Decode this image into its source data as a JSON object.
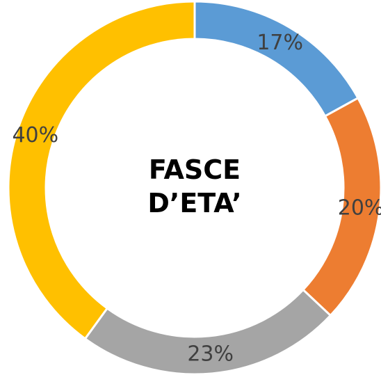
{
  "chart_data": {
    "type": "donut",
    "title": "FASCE D’ETA’",
    "values": [
      17,
      20,
      23,
      40
    ],
    "value_labels": [
      "17%",
      "20%",
      "23%",
      "40%"
    ],
    "colors": [
      "#5b9bd5",
      "#ed7d31",
      "#a5a5a5",
      "#ffc000"
    ]
  }
}
